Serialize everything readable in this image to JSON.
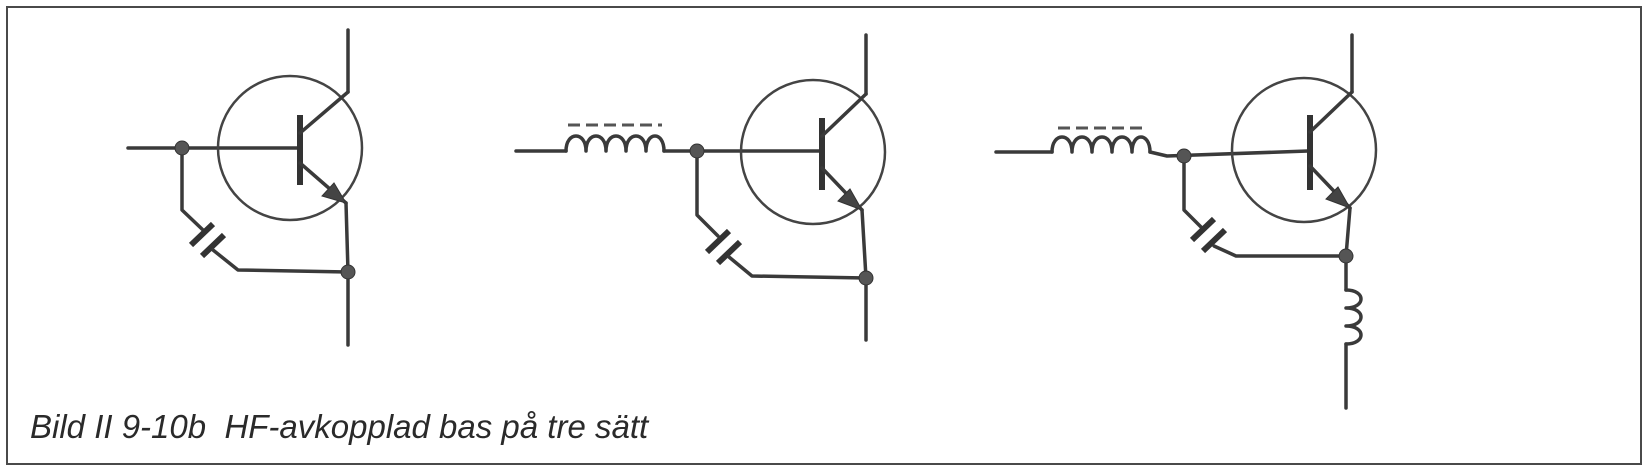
{
  "caption": "Bild II 9-10b  HF-avkopplad bas på tre sätt",
  "circuits": [
    {
      "variant": "capacitor-only"
    },
    {
      "variant": "base-inductor"
    },
    {
      "variant": "base-and-emitter-inductor"
    }
  ],
  "colors": {
    "line": "#3a3a3a",
    "border": "#4a4a4a",
    "background": "#ffffff"
  }
}
